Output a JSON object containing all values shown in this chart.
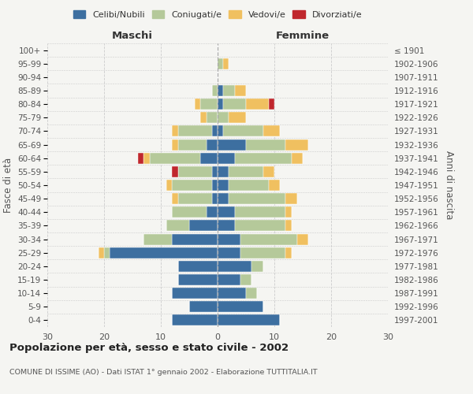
{
  "age_groups": [
    "0-4",
    "5-9",
    "10-14",
    "15-19",
    "20-24",
    "25-29",
    "30-34",
    "35-39",
    "40-44",
    "45-49",
    "50-54",
    "55-59",
    "60-64",
    "65-69",
    "70-74",
    "75-79",
    "80-84",
    "85-89",
    "90-94",
    "95-99",
    "100+"
  ],
  "birth_years": [
    "1997-2001",
    "1992-1996",
    "1987-1991",
    "1982-1986",
    "1977-1981",
    "1972-1976",
    "1967-1971",
    "1962-1966",
    "1957-1961",
    "1952-1956",
    "1947-1951",
    "1942-1946",
    "1937-1941",
    "1932-1936",
    "1927-1931",
    "1922-1926",
    "1917-1921",
    "1912-1916",
    "1907-1911",
    "1902-1906",
    "≤ 1901"
  ],
  "colors": {
    "celibi": "#3d6fa0",
    "coniugati": "#b5c99a",
    "vedovi": "#f0c060",
    "divorziati": "#c0272d"
  },
  "males": {
    "celibi": [
      8,
      5,
      8,
      7,
      7,
      19,
      8,
      5,
      2,
      1,
      1,
      1,
      3,
      2,
      1,
      0,
      0,
      0,
      0,
      0,
      0
    ],
    "coniugati": [
      0,
      0,
      0,
      0,
      0,
      1,
      5,
      4,
      6,
      6,
      7,
      6,
      9,
      5,
      6,
      2,
      3,
      1,
      0,
      0,
      0
    ],
    "vedovi": [
      0,
      0,
      0,
      0,
      0,
      1,
      0,
      0,
      0,
      1,
      1,
      0,
      1,
      1,
      1,
      1,
      1,
      0,
      0,
      0,
      0
    ],
    "divorziati": [
      0,
      0,
      0,
      0,
      0,
      0,
      0,
      0,
      0,
      0,
      0,
      1,
      1,
      0,
      0,
      0,
      0,
      0,
      0,
      0,
      0
    ]
  },
  "females": {
    "celibi": [
      11,
      8,
      5,
      4,
      6,
      4,
      4,
      3,
      3,
      2,
      2,
      2,
      3,
      5,
      1,
      0,
      1,
      1,
      0,
      0,
      0
    ],
    "coniugati": [
      0,
      0,
      2,
      2,
      2,
      8,
      10,
      9,
      9,
      10,
      7,
      6,
      10,
      7,
      7,
      2,
      4,
      2,
      0,
      1,
      0
    ],
    "vedovi": [
      0,
      0,
      0,
      0,
      0,
      1,
      2,
      1,
      1,
      2,
      2,
      2,
      2,
      4,
      3,
      3,
      4,
      2,
      0,
      1,
      0
    ],
    "divorziati": [
      0,
      0,
      0,
      0,
      0,
      0,
      0,
      0,
      0,
      0,
      0,
      0,
      0,
      0,
      0,
      0,
      1,
      0,
      0,
      0,
      0
    ]
  },
  "title": "Popolazione per età, sesso e stato civile - 2002",
  "subtitle": "COMUNE DI ISSIME (AO) - Dati ISTAT 1° gennaio 2002 - Elaborazione TUTTITALIA.IT",
  "xlabel_left": "Maschi",
  "xlabel_right": "Femmine",
  "ylabel_left": "Fasce di età",
  "ylabel_right": "Anni di nascita",
  "legend_labels": [
    "Celibi/Nubili",
    "Coniugati/e",
    "Vedovi/e",
    "Divorziati/e"
  ],
  "xlim": 30,
  "bg_color": "#f5f5f2",
  "grid_color": "#cccccc"
}
